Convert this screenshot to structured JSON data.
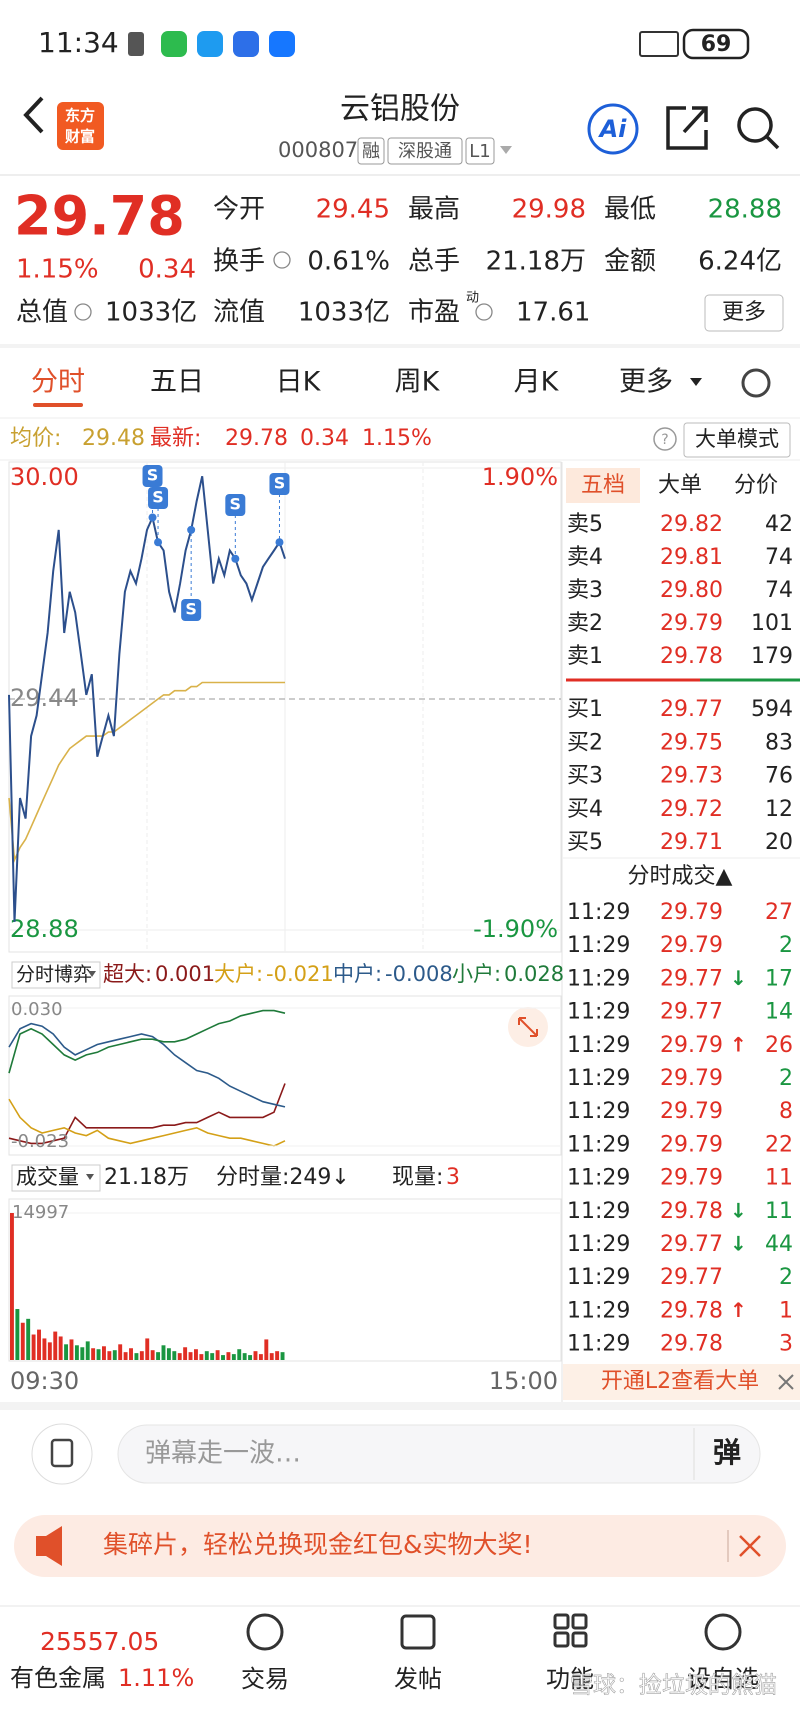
{
  "status_bar": {
    "time": "11:34",
    "battery": "69"
  },
  "header": {
    "brand": [
      "东方",
      "财富"
    ],
    "title": "云铝股份",
    "code": "000807",
    "tags": [
      "融",
      "深股通",
      "L1"
    ],
    "ai": "Ai"
  },
  "quote": {
    "price": "29.78",
    "change_pct": "1.15%",
    "change": "0.34",
    "fields": [
      {
        "label": "今开",
        "value": "29.45",
        "color": "#e02e24"
      },
      {
        "label": "最高",
        "value": "29.98",
        "color": "#e02e24"
      },
      {
        "label": "最低",
        "value": "28.88",
        "color": "#1a9641"
      },
      {
        "label": "换手",
        "value": "0.61%"
      },
      {
        "label": "总手",
        "value": "21.18万"
      },
      {
        "label": "金额",
        "value": "6.24亿"
      },
      {
        "label": "总值",
        "value": "1033亿"
      },
      {
        "label": "流值",
        "value": "1033亿"
      },
      {
        "label": "市盈",
        "value": "17.61"
      }
    ],
    "dynamic": "动",
    "more": "更多"
  },
  "tabs": [
    "分时",
    "五日",
    "日K",
    "周K",
    "月K",
    "更多"
  ],
  "info_row": {
    "avg_label": "均价:",
    "avg": "29.48",
    "latest_label": "最新:",
    "latest": "29.78",
    "change": "0.34",
    "pct": "1.15%",
    "mode": "大单模式"
  },
  "chart": {
    "type": "line",
    "ylim": [
      28.88,
      30.0
    ],
    "yticks": [
      {
        "value": 30.0,
        "label": "30.00"
      },
      {
        "value": 29.44,
        "label": "29.44"
      },
      {
        "value": 28.88,
        "label": "28.88"
      }
    ],
    "pct_labels": [
      "1.90%",
      "-1.90%"
    ],
    "x_labels": [
      "09:30",
      "15:00"
    ],
    "signal": "S",
    "price_color": "#2c4f8c",
    "avg_color": "#d9b24a",
    "price": [
      29.45,
      28.9,
      29.2,
      29.15,
      29.35,
      29.4,
      29.5,
      29.6,
      29.75,
      29.85,
      29.6,
      29.7,
      29.65,
      29.55,
      29.45,
      29.5,
      29.3,
      29.35,
      29.4,
      29.35,
      29.55,
      29.7,
      29.75,
      29.72,
      29.78,
      29.85,
      29.88,
      29.82,
      29.8,
      29.7,
      29.65,
      29.72,
      29.8,
      29.85,
      29.92,
      29.98,
      29.85,
      29.72,
      29.78,
      29.74,
      29.8,
      29.78,
      29.74,
      29.72,
      29.68,
      29.72,
      29.76,
      29.78,
      29.8,
      29.82,
      29.78
    ],
    "avg": [
      29.2,
      29.05,
      29.08,
      29.1,
      29.13,
      29.16,
      29.19,
      29.22,
      29.25,
      29.28,
      29.3,
      29.32,
      29.33,
      29.34,
      29.35,
      29.35,
      29.35,
      29.35,
      29.36,
      29.36,
      29.37,
      29.38,
      29.39,
      29.4,
      29.41,
      29.42,
      29.43,
      29.44,
      29.45,
      29.45,
      29.46,
      29.46,
      29.46,
      29.47,
      29.47,
      29.48,
      29.48,
      29.48,
      29.48,
      29.48,
      29.48,
      29.48,
      29.48,
      29.48,
      29.48,
      29.48,
      29.48,
      29.48,
      29.48,
      29.48,
      29.48
    ]
  },
  "game": {
    "title": "分时博弈",
    "ylim": [
      -0.023,
      0.03
    ],
    "yticks": [
      {
        "value": 0.03,
        "label": "0.030"
      },
      {
        "value": -0.023,
        "label": "-0.023"
      }
    ],
    "series": [
      {
        "name": "超大:",
        "value": "0.001",
        "color": "#8b1a1a",
        "values": [
          -0.02,
          -0.021,
          -0.022,
          -0.022,
          -0.021,
          -0.02,
          -0.012,
          -0.016,
          -0.016,
          -0.016,
          -0.016,
          -0.016,
          -0.016,
          -0.016,
          -0.015,
          -0.015,
          -0.014,
          -0.014,
          -0.012,
          -0.01,
          -0.012,
          -0.012,
          -0.012,
          -0.012,
          -0.01,
          0.001
        ]
      },
      {
        "name": "大户:",
        "value": "-0.021",
        "color": "#d4a017",
        "values": [
          -0.005,
          -0.012,
          -0.016,
          -0.018,
          -0.017,
          -0.016,
          -0.018,
          -0.019,
          -0.017,
          -0.02,
          -0.021,
          -0.022,
          -0.021,
          -0.02,
          -0.019,
          -0.018,
          -0.017,
          -0.016,
          -0.018,
          -0.019,
          -0.02,
          -0.02,
          -0.021,
          -0.022,
          -0.023,
          -0.021
        ]
      },
      {
        "name": "中户:",
        "value": "-0.008",
        "color": "#2c5a8a",
        "values": [
          0.015,
          0.022,
          0.024,
          0.023,
          0.02,
          0.015,
          0.012,
          0.014,
          0.016,
          0.017,
          0.018,
          0.019,
          0.02,
          0.019,
          0.016,
          0.012,
          0.009,
          0.006,
          0.005,
          0.003,
          0.0,
          -0.002,
          -0.004,
          -0.006,
          -0.007,
          -0.008
        ]
      },
      {
        "name": "小户:",
        "value": "0.028",
        "color": "#1f7a3a",
        "values": [
          0.005,
          0.02,
          0.022,
          0.02,
          0.016,
          0.012,
          0.01,
          0.012,
          0.013,
          0.015,
          0.016,
          0.017,
          0.018,
          0.018,
          0.017,
          0.017,
          0.018,
          0.02,
          0.022,
          0.024,
          0.025,
          0.027,
          0.028,
          0.029,
          0.029,
          0.028
        ]
      }
    ]
  },
  "volume": {
    "title": "成交量",
    "total": "21.18万",
    "minute": "分时量:249↓",
    "now_label": "现量:",
    "now": "3",
    "ylim": [
      0,
      14997
    ],
    "yticks": [
      14997
    ],
    "up_color": "#e02e24",
    "down_color": "#1a9641",
    "values": [
      14997,
      5200,
      3800,
      4200,
      2600,
      3100,
      2200,
      1800,
      2900,
      2400,
      1600,
      2100,
      1500,
      1300,
      1900,
      1200,
      1100,
      1400,
      900,
      1000,
      1600,
      800,
      1200,
      700,
      900,
      2200,
      1000,
      800,
      1500,
      1200,
      900,
      700,
      1300,
      800,
      1100,
      600,
      900,
      700,
      1000,
      500,
      800,
      600,
      1100,
      700,
      500,
      900,
      600,
      2100,
      700,
      900,
      800
    ]
  },
  "order_book": {
    "tabs": [
      "五档",
      "大单",
      "分价"
    ],
    "asks": [
      {
        "label": "卖5",
        "price": "29.82",
        "vol": "42"
      },
      {
        "label": "卖4",
        "price": "29.81",
        "vol": "74"
      },
      {
        "label": "卖3",
        "price": "29.80",
        "vol": "74"
      },
      {
        "label": "卖2",
        "price": "29.79",
        "vol": "101"
      },
      {
        "label": "卖1",
        "price": "29.78",
        "vol": "179"
      }
    ],
    "bids": [
      {
        "label": "买1",
        "price": "29.77",
        "vol": "594"
      },
      {
        "label": "买2",
        "price": "29.75",
        "vol": "83"
      },
      {
        "label": "买3",
        "price": "29.73",
        "vol": "76"
      },
      {
        "label": "买4",
        "price": "29.72",
        "vol": "12"
      },
      {
        "label": "买5",
        "price": "29.71",
        "vol": "20"
      }
    ]
  },
  "trades": {
    "title": "分时成交▲",
    "rows": [
      {
        "time": "11:29",
        "price": "29.79",
        "vol": "27",
        "color": "#e02e24"
      },
      {
        "time": "11:29",
        "price": "29.79",
        "vol": "2",
        "color": "#1a9641"
      },
      {
        "time": "11:29",
        "price": "29.77",
        "arrow": "↓",
        "vol": "17",
        "color": "#1a9641"
      },
      {
        "time": "11:29",
        "price": "29.77",
        "vol": "14",
        "color": "#1a9641"
      },
      {
        "time": "11:29",
        "price": "29.79",
        "arrow": "↑",
        "vol": "26",
        "color": "#e02e24"
      },
      {
        "time": "11:29",
        "price": "29.79",
        "vol": "2",
        "color": "#1a9641"
      },
      {
        "time": "11:29",
        "price": "29.79",
        "vol": "8",
        "color": "#e02e24"
      },
      {
        "time": "11:29",
        "price": "29.79",
        "vol": "22",
        "color": "#e02e24"
      },
      {
        "time": "11:29",
        "price": "29.79",
        "vol": "11",
        "color": "#e02e24"
      },
      {
        "time": "11:29",
        "price": "29.78",
        "arrow": "↓",
        "vol": "11",
        "color": "#1a9641"
      },
      {
        "time": "11:29",
        "price": "29.77",
        "arrow": "↓",
        "vol": "44",
        "color": "#1a9641"
      },
      {
        "time": "11:29",
        "price": "29.77",
        "vol": "2",
        "color": "#1a9641"
      },
      {
        "time": "11:29",
        "price": "29.78",
        "arrow": "↑",
        "vol": "1",
        "color": "#e02e24"
      },
      {
        "time": "11:29",
        "price": "29.78",
        "vol": "3",
        "color": "#e02e24"
      }
    ],
    "l2": "开通L2查看大单"
  },
  "comment": {
    "placeholder": "弹幕走一波…",
    "button": "弹"
  },
  "banner": "集碎片，轻松兑换现金红包&实物大奖!",
  "bottom_nav": {
    "index_value": "25557.05",
    "index_name": "有色金属",
    "index_pct": "1.11%",
    "items": [
      "交易",
      "发帖",
      "功能",
      "设自选"
    ]
  },
  "watermark": "雪球：捡垃圾的熊猫"
}
